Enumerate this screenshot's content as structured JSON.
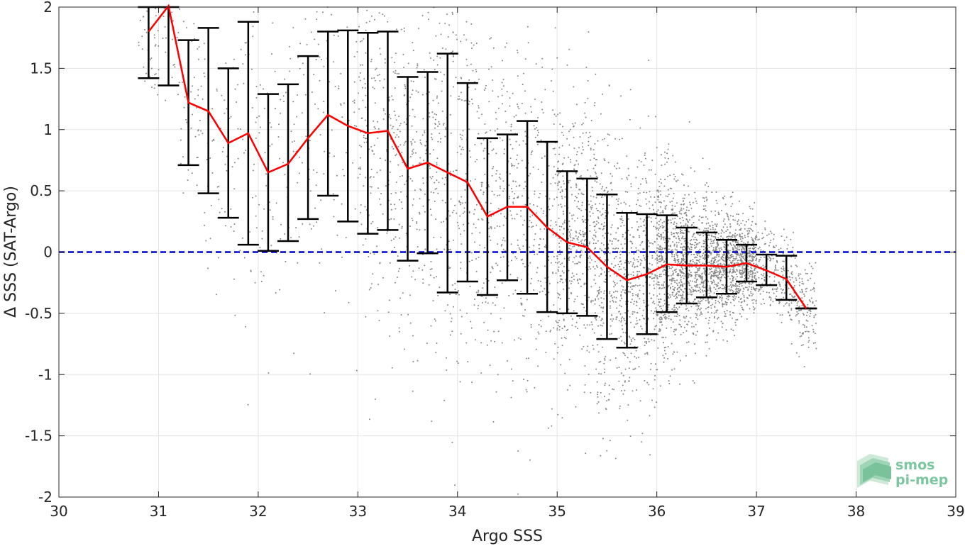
{
  "chart_data": {
    "type": "scatter",
    "xlabel": "Argo SSS",
    "ylabel": "Δ SSS (SAT-Argo)",
    "xlim": [
      30,
      39
    ],
    "ylim": [
      -2,
      2
    ],
    "x_ticks": [
      "30",
      "31",
      "32",
      "33",
      "34",
      "35",
      "36",
      "37",
      "38",
      "39"
    ],
    "y_ticks": [
      "2",
      "1.5",
      "1",
      "0.5",
      "0",
      "-0.5",
      "-1",
      "-1.5",
      "-2"
    ],
    "grid": true,
    "zero_line": {
      "y": 0,
      "color": "#0000cc",
      "style": "dashed"
    },
    "scatter_color": "#888888",
    "mean_line_color": "#ff0000",
    "errorbar_color": "#000000",
    "binned_stats": {
      "x": [
        30.9,
        31.1,
        31.3,
        31.5,
        31.7,
        31.9,
        32.1,
        32.3,
        32.5,
        32.7,
        32.9,
        33.1,
        33.3,
        33.5,
        33.7,
        33.9,
        34.1,
        34.3,
        34.5,
        34.7,
        34.9,
        35.1,
        35.3,
        35.5,
        35.7,
        35.9,
        36.1,
        36.3,
        36.5,
        36.7,
        36.9,
        37.1,
        37.3,
        37.5
      ],
      "mean": [
        1.8,
        2.01,
        1.22,
        1.15,
        0.89,
        0.97,
        0.65,
        0.72,
        0.93,
        1.12,
        1.03,
        0.97,
        0.99,
        0.68,
        0.73,
        0.65,
        0.57,
        0.29,
        0.37,
        0.37,
        0.2,
        0.08,
        0.04,
        -0.12,
        -0.23,
        -0.18,
        -0.1,
        -0.11,
        -0.11,
        -0.12,
        -0.09,
        -0.15,
        -0.22,
        -0.46
      ],
      "upper": [
        2.0,
        2.0,
        1.73,
        1.83,
        1.5,
        1.88,
        1.29,
        1.37,
        1.6,
        1.8,
        1.81,
        1.79,
        1.8,
        1.43,
        1.47,
        1.62,
        1.38,
        0.93,
        0.96,
        1.07,
        0.9,
        0.66,
        0.6,
        0.47,
        0.32,
        0.31,
        0.3,
        0.2,
        0.16,
        0.1,
        0.06,
        -0.02,
        -0.03,
        -0.46
      ],
      "lower": [
        1.42,
        1.36,
        0.71,
        0.48,
        0.28,
        0.06,
        0.01,
        0.09,
        0.27,
        0.46,
        0.25,
        0.15,
        0.18,
        -0.07,
        -0.01,
        -0.33,
        -0.24,
        -0.35,
        -0.23,
        -0.34,
        -0.49,
        -0.5,
        -0.52,
        -0.71,
        -0.78,
        -0.67,
        -0.49,
        -0.42,
        -0.37,
        -0.34,
        -0.24,
        -0.27,
        -0.39,
        -0.46
      ]
    }
  },
  "logo": {
    "line1": "smos",
    "line2": "pi-mep"
  }
}
